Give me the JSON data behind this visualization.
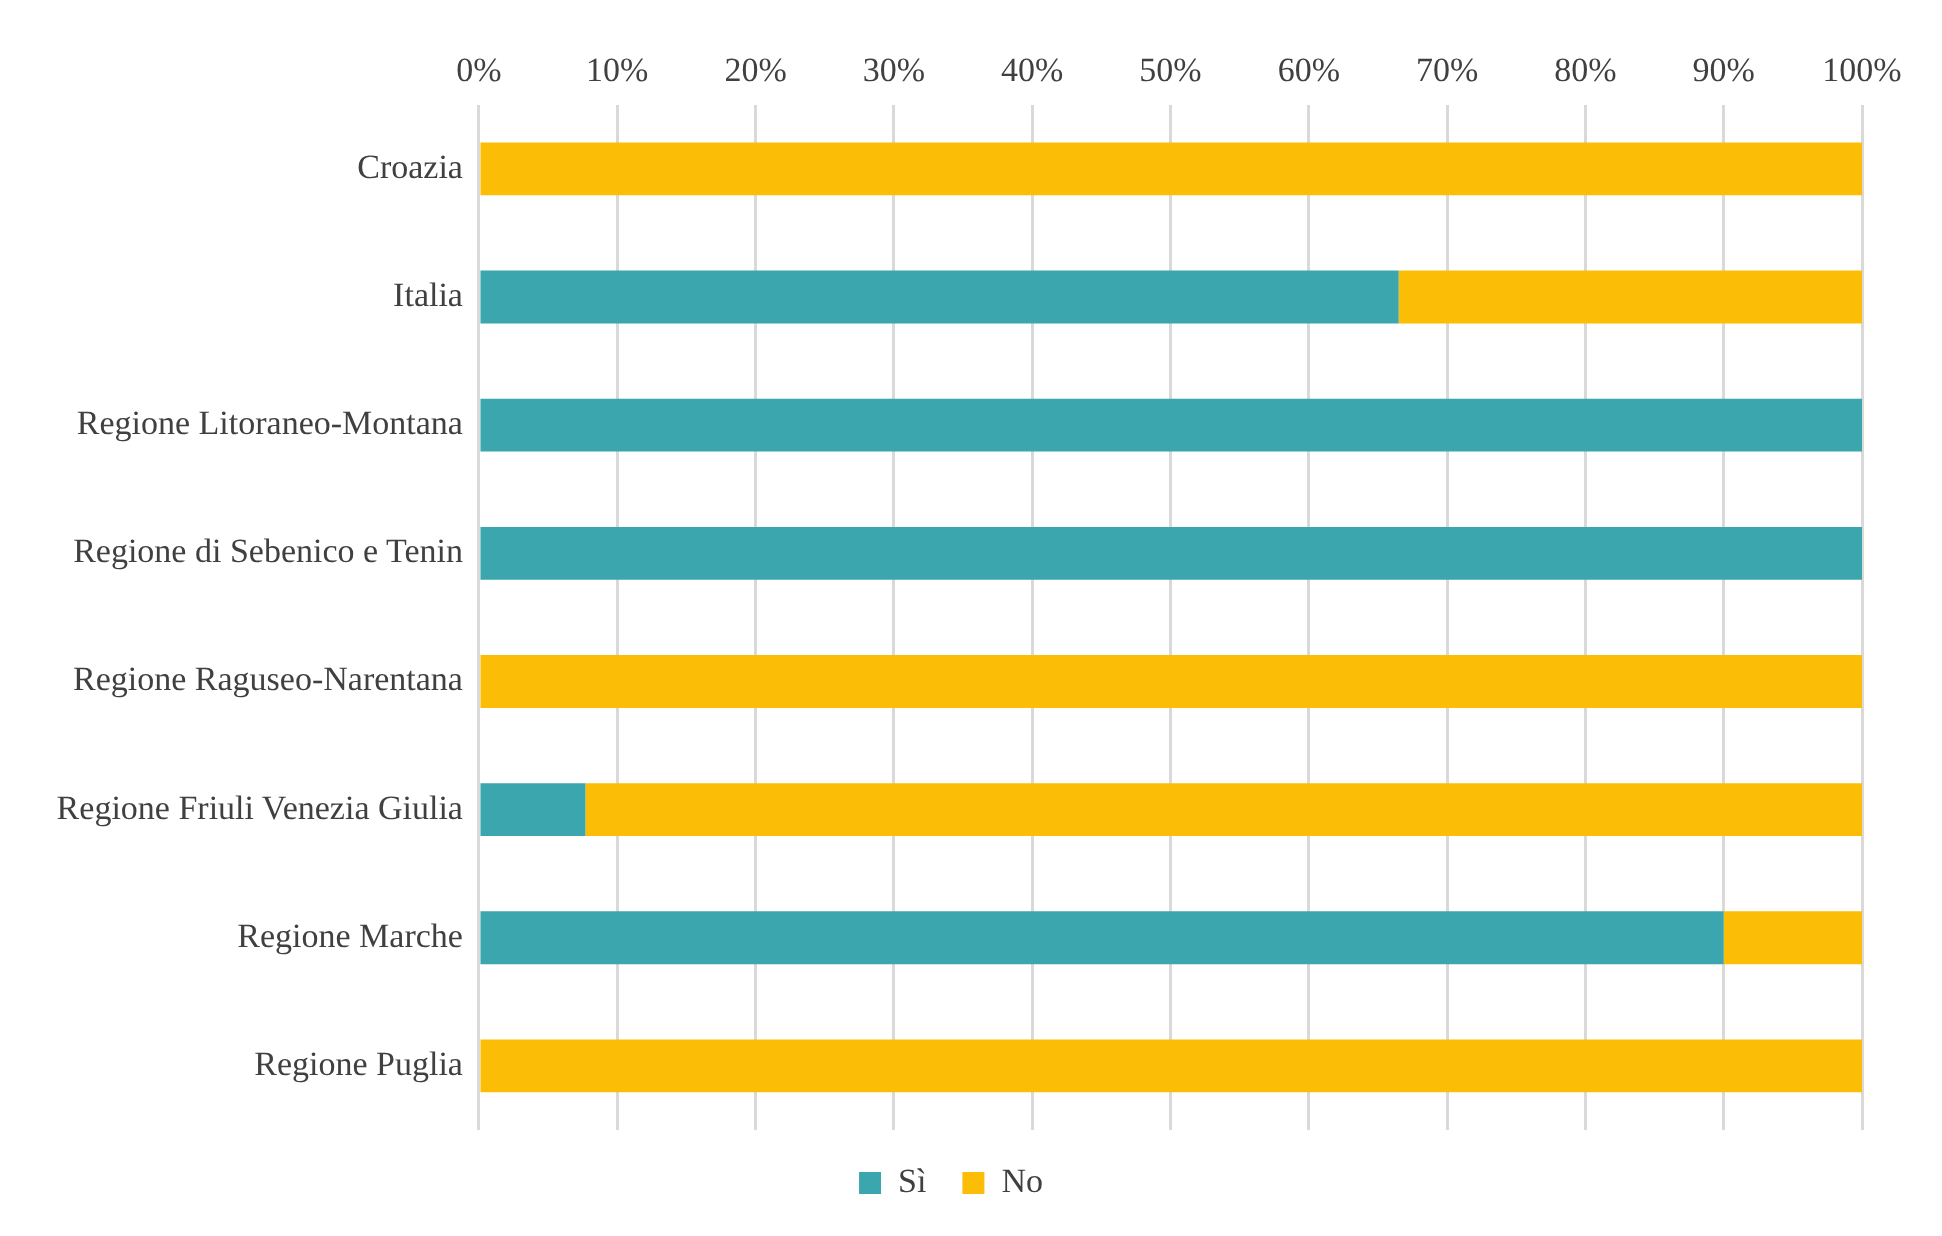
{
  "chart_data": {
    "type": "bar",
    "orientation": "horizontal",
    "stacked": true,
    "categories": [
      "Croazia",
      "Italia",
      "Regione Litoraneo-Montana",
      "Regione di Sebenico e Tenin",
      "Regione Raguseo-Narentana",
      "Regione Friuli Venezia Giulia",
      "Regione Marche",
      "Regione Puglia"
    ],
    "series": [
      {
        "name": "Sì",
        "color": "#3ca6ae",
        "values": [
          0,
          66.5,
          100,
          100,
          0,
          7.7,
          90,
          0
        ]
      },
      {
        "name": "No",
        "color": "#fbbd06",
        "values": [
          100,
          33.5,
          0,
          0,
          100,
          92.3,
          10,
          100
        ]
      }
    ],
    "xlim": [
      0,
      100
    ],
    "xticks": [
      {
        "value": 0,
        "label": "0%"
      },
      {
        "value": 10,
        "label": "10%"
      },
      {
        "value": 20,
        "label": "20%"
      },
      {
        "value": 30,
        "label": "30%"
      },
      {
        "value": 40,
        "label": "40%"
      },
      {
        "value": 50,
        "label": "50%"
      },
      {
        "value": 60,
        "label": "60%"
      },
      {
        "value": 70,
        "label": "70%"
      },
      {
        "value": 80,
        "label": "80%"
      },
      {
        "value": 90,
        "label": "90%"
      },
      {
        "value": 100,
        "label": "100%"
      }
    ],
    "grid": "x",
    "legend": "bottom"
  }
}
